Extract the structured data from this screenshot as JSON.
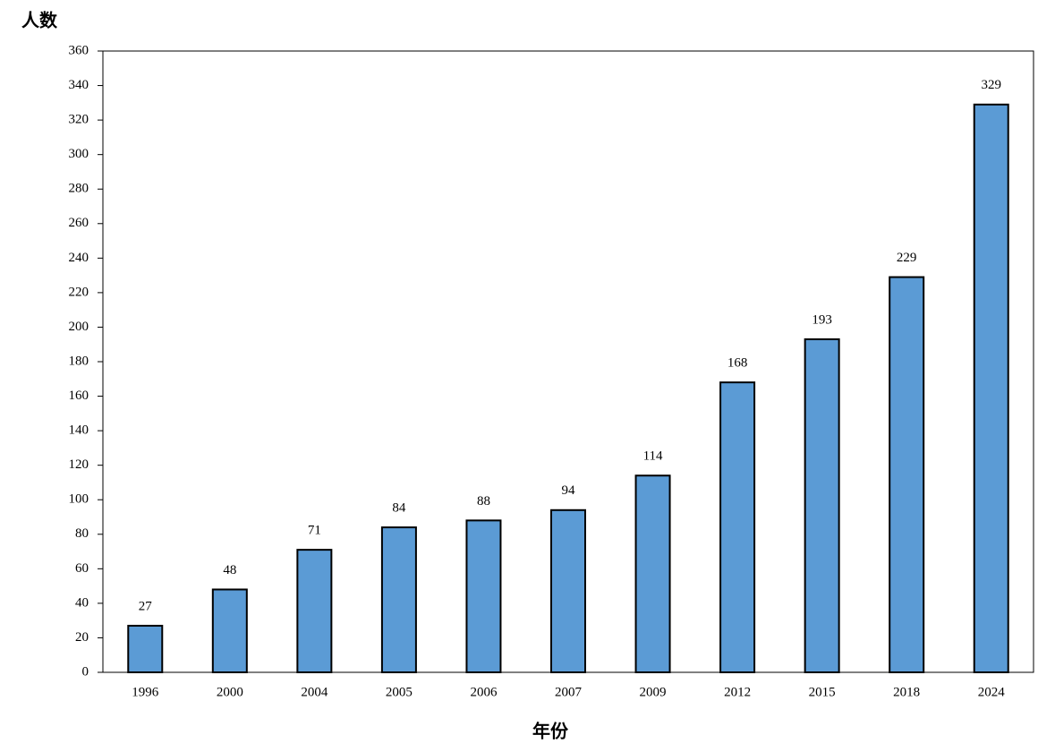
{
  "chart_data": {
    "type": "bar",
    "y_label": "人数",
    "x_label": "年份",
    "categories": [
      "1996",
      "2000",
      "2004",
      "2005",
      "2006",
      "2007",
      "2009",
      "2012",
      "2015",
      "2018",
      "2024"
    ],
    "values": [
      27,
      48,
      71,
      84,
      88,
      94,
      114,
      168,
      193,
      229,
      329
    ],
    "color": "#5b9bd5",
    "ylim": [
      0,
      360
    ],
    "yticks": [
      0,
      20,
      40,
      60,
      80,
      100,
      120,
      140,
      160,
      180,
      200,
      220,
      240,
      260,
      280,
      300,
      320,
      340,
      360
    ],
    "grid": false
  }
}
